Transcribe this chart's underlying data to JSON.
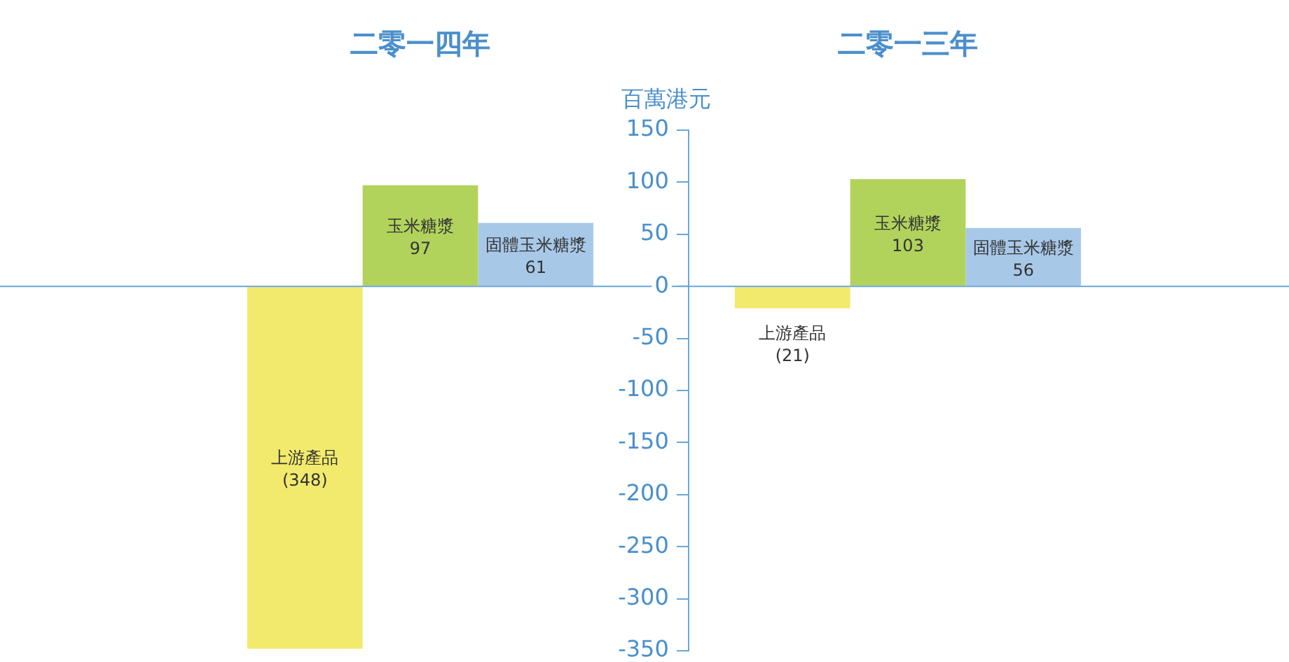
{
  "chart_data": {
    "type": "bar",
    "categories": [
      "二零一四年",
      "二零一三年"
    ],
    "ylabel": "百萬港元",
    "series": [
      {
        "name": "上游產品",
        "color": "#f2ea6c",
        "values": [
          -348,
          -21
        ],
        "value_labels": [
          "(348)",
          "(21)"
        ]
      },
      {
        "name": "玉米糖漿",
        "color": "#b1d35c",
        "values": [
          97,
          103
        ],
        "value_labels": [
          "97",
          "103"
        ]
      },
      {
        "name": "固體玉米糖漿",
        "color": "#a8c8e8",
        "values": [
          61,
          56
        ],
        "value_labels": [
          "61",
          "56"
        ]
      }
    ],
    "ylim": [
      -350,
      150
    ],
    "yticks": [
      -350,
      -300,
      -250,
      -200,
      -150,
      -100,
      -50,
      0,
      50,
      100,
      150
    ],
    "grid": false,
    "legend": false,
    "ref_lines": [
      {
        "axis": "y",
        "value": 0,
        "color": "#6aa6d6"
      }
    ]
  }
}
